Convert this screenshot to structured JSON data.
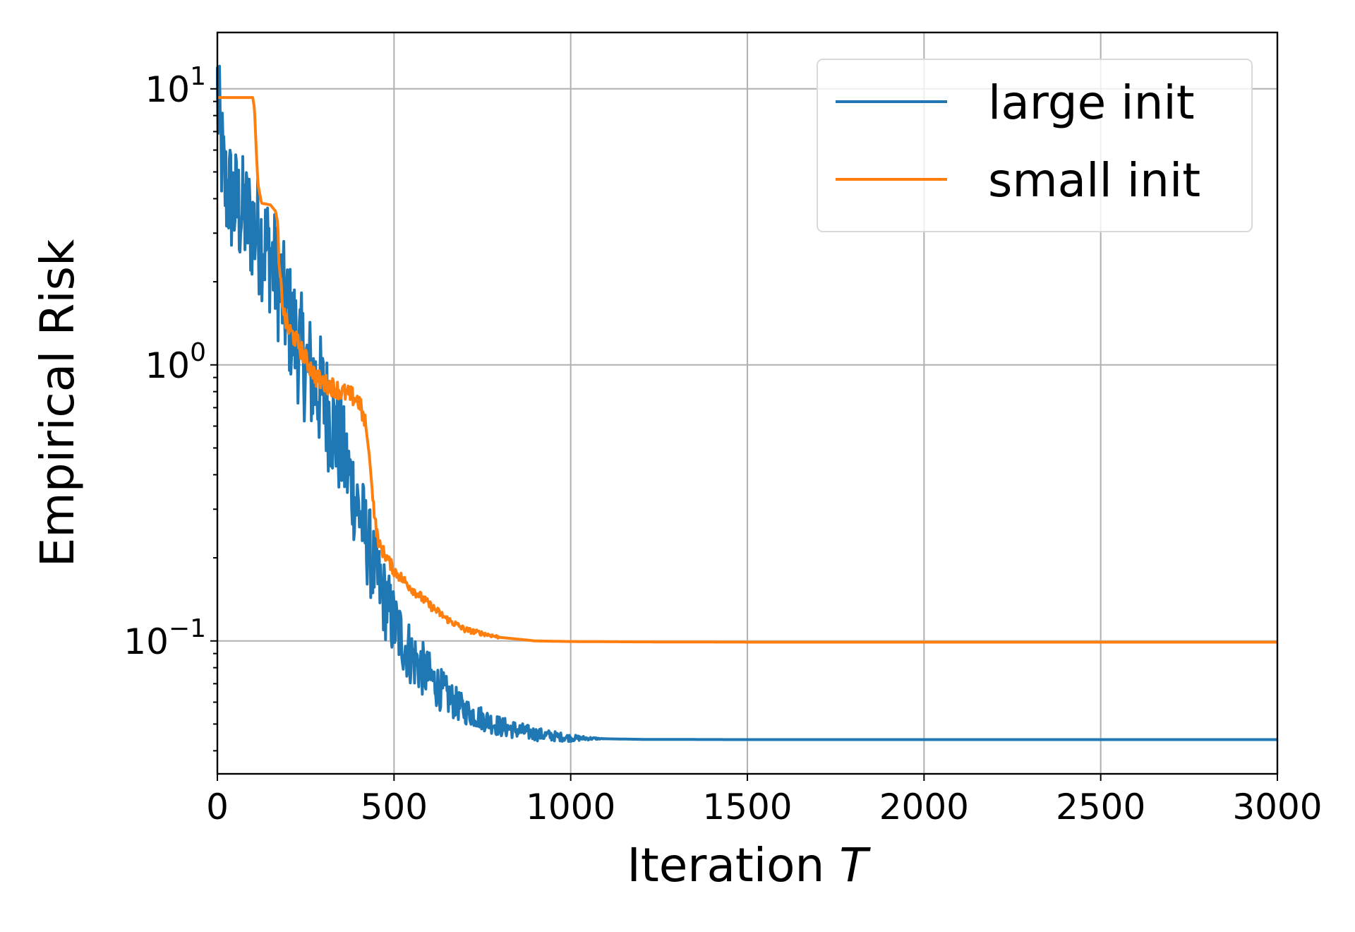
{
  "chart_data": {
    "type": "line",
    "xlabel": "Iteration",
    "xlabel_italic": "T",
    "ylabel": "Empirical Risk",
    "xlim": [
      0,
      3000
    ],
    "ylim": [
      0.033,
      16
    ],
    "yscale": "log",
    "grid": true,
    "legend_position": "top-right",
    "x_ticks": [
      0,
      500,
      1000,
      1500,
      2000,
      2500,
      3000
    ],
    "x_tick_labels": [
      "0",
      "500",
      "1000",
      "1500",
      "2000",
      "2500",
      "3000"
    ],
    "y_ticks": [
      {
        "value": 10,
        "base": "10",
        "exp": "1"
      },
      {
        "value": 1,
        "base": "10",
        "exp": "0"
      },
      {
        "value": 0.1,
        "base": "10",
        "exp": "−1"
      }
    ],
    "series": [
      {
        "name": "large init",
        "color": "#1f77b4",
        "noisy": true,
        "x": [
          0,
          20,
          50,
          100,
          150,
          200,
          250,
          300,
          350,
          400,
          450,
          500,
          550,
          600,
          650,
          700,
          800,
          900,
          1000,
          1100,
          1200,
          1500,
          2000,
          2500,
          3000
        ],
        "y": [
          9.0,
          4.5,
          3.8,
          3.2,
          2.5,
          1.5,
          1.0,
          0.75,
          0.5,
          0.3,
          0.17,
          0.115,
          0.088,
          0.074,
          0.063,
          0.056,
          0.049,
          0.046,
          0.0445,
          0.0442,
          0.044,
          0.0439,
          0.0439,
          0.0439,
          0.0439
        ]
      },
      {
        "name": "small init",
        "color": "#ff7f0e",
        "noisy": false,
        "x": [
          0,
          100,
          105,
          110,
          115,
          125,
          150,
          165,
          170,
          175,
          180,
          190,
          200,
          220,
          250,
          280,
          300,
          330,
          350,
          380,
          400,
          420,
          430,
          440,
          450,
          460,
          480,
          500,
          550,
          600,
          650,
          700,
          800,
          900,
          1000,
          1200,
          1500,
          2000,
          3000
        ],
        "y": [
          9.3,
          9.3,
          8.5,
          6.0,
          4.5,
          3.85,
          3.8,
          3.6,
          3.3,
          2.2,
          1.9,
          1.5,
          1.35,
          1.25,
          1.05,
          0.9,
          0.86,
          0.83,
          0.8,
          0.77,
          0.74,
          0.6,
          0.47,
          0.33,
          0.25,
          0.22,
          0.2,
          0.18,
          0.155,
          0.135,
          0.12,
          0.11,
          0.103,
          0.1,
          0.0995,
          0.0992,
          0.099,
          0.099,
          0.099
        ]
      }
    ]
  }
}
